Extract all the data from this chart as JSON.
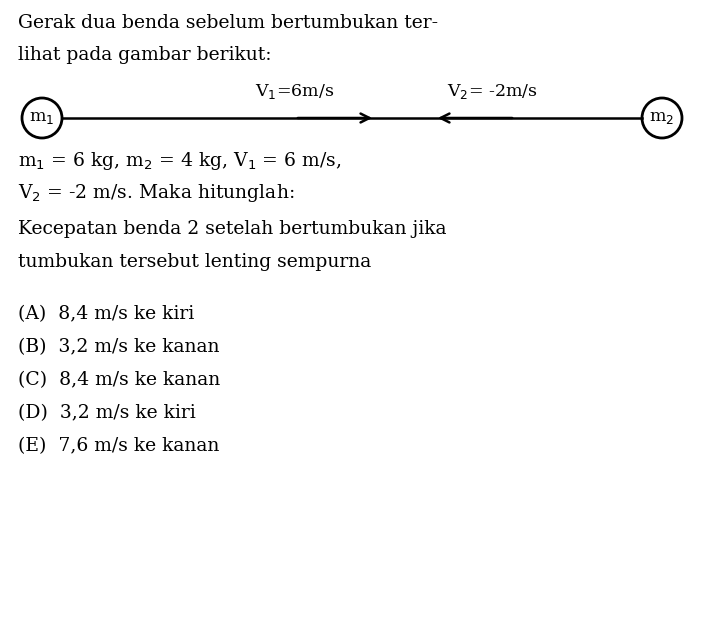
{
  "bg_color": "#ffffff",
  "text_color": "#000000",
  "title_line1": "Gerak dua benda sebelum bertumbukan ter-",
  "title_line2": "lihat pada gambar berikut:",
  "v1_label": "V$_1$=6m/s",
  "v2_label": "V$_2$= -2m/s",
  "m1_label": "m$_1$",
  "m2_label": "m$_2$",
  "param_line1": "m$_1$ = 6 kg, m$_2$ = 4 kg, V$_1$ = 6 m/s,",
  "param_line2": "V$_2$ = -2 m/s. Maka hitunglah:",
  "question_line1": "Kecepatan benda 2 setelah bertumbukan jika",
  "question_line2": "tumbukan tersebut lenting sempurna",
  "options": [
    "(A)  8,4 m/s ke kiri",
    "(B)  3,2 m/s ke kanan",
    "(C)  8,4 m/s ke kanan",
    "(D)  3,2 m/s ke kiri",
    "(E)  7,6 m/s ke kanan"
  ],
  "font_size_main": 13.5,
  "font_size_diagram": 12.5,
  "font_family": "DejaVu Serif",
  "fig_width": 7.09,
  "fig_height": 6.36,
  "dpi": 100
}
